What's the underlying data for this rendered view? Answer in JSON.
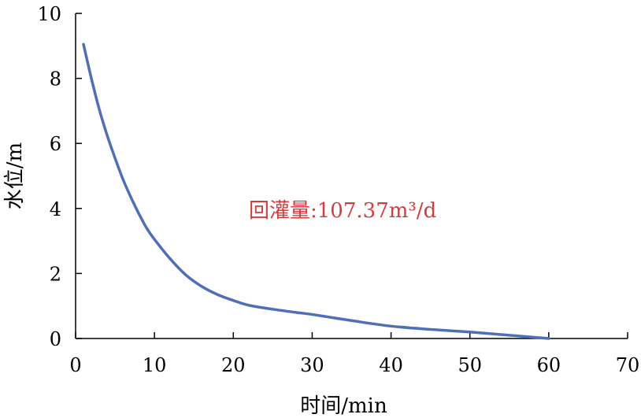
{
  "chart_data": {
    "type": "line",
    "title": "",
    "xlabel": "时间/min",
    "ylabel": "水位/m",
    "xlim": [
      0,
      70
    ],
    "ylim": [
      0,
      10
    ],
    "xticks": [
      0,
      10,
      20,
      30,
      40,
      50,
      60,
      70
    ],
    "yticks": [
      0,
      2,
      4,
      6,
      8,
      10
    ],
    "grid": false,
    "legend": "none",
    "series": [
      {
        "x": [
          1,
          2,
          3,
          4,
          5,
          6,
          7,
          8,
          9,
          10,
          12,
          14,
          16,
          18,
          20,
          22,
          25,
          28,
          30,
          35,
          40,
          45,
          50,
          55,
          60
        ],
        "y": [
          9.05,
          8.0,
          7.05,
          6.25,
          5.55,
          4.9,
          4.35,
          3.85,
          3.4,
          3.05,
          2.45,
          1.95,
          1.6,
          1.35,
          1.17,
          1.02,
          0.9,
          0.8,
          0.74,
          0.55,
          0.38,
          0.28,
          0.2,
          0.1,
          0.0
        ]
      }
    ],
    "annotation": "回灌量:107.37m³/d",
    "colors": {
      "line": "#4f6fb8",
      "annotation": "#d93a3a",
      "axis": "#000000"
    }
  }
}
